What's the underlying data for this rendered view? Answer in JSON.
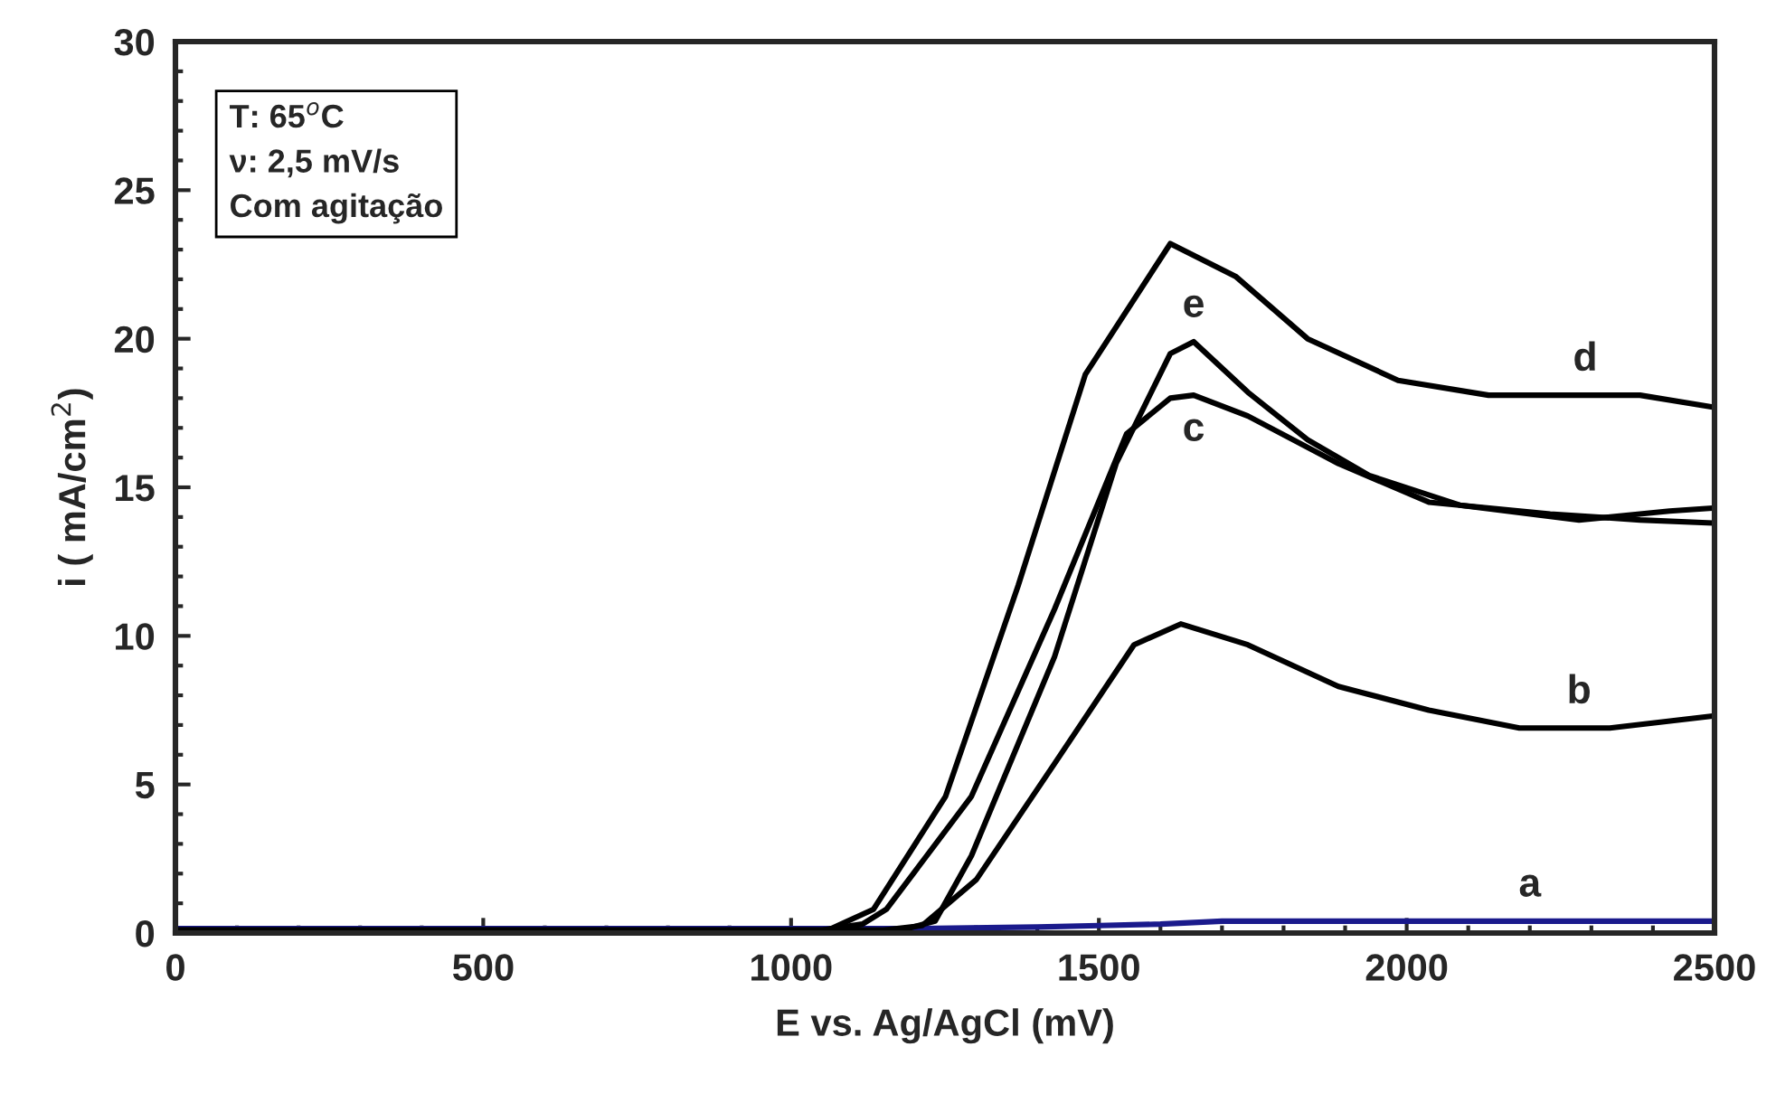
{
  "chart_data": {
    "type": "line",
    "xlabel": "E vs. Ag/AgCl (mV)",
    "ylabel": "i ( mA/cm$^{2}$)",
    "xlim": [
      0,
      2500
    ],
    "xticks": [
      0,
      500,
      1000,
      1500,
      2000,
      2500
    ],
    "ylim": [
      0,
      30
    ],
    "yticks": [
      0,
      5,
      10,
      15,
      20,
      25,
      30
    ],
    "grid": false,
    "legend": false,
    "marker": "none",
    "line_style": "solid",
    "series": [
      {
        "color": "#1a1a8c",
        "x": [
          0,
          600,
          1200,
          1400,
          1500,
          1600,
          1700,
          2000,
          2500
        ],
        "values": [
          0.15,
          0.15,
          0.15,
          0.2,
          0.25,
          0.3,
          0.4,
          0.4,
          0.4
        ]
      },
      {
        "color": "#000000",
        "x": [
          0,
          1150,
          1213,
          1301,
          1428,
          1557,
          1633,
          1742,
          1889,
          2036,
          2183,
          2330,
          2497
        ],
        "values": [
          0.1,
          0.1,
          0.25,
          1.8,
          5.7,
          9.7,
          10.4,
          9.7,
          8.3,
          7.5,
          6.9,
          6.9,
          7.3
        ]
      },
      {
        "color": "#000000",
        "x": [
          0,
          1050,
          1116,
          1155,
          1293,
          1428,
          1545,
          1616,
          1654,
          1742,
          1889,
          2036,
          2233,
          2379,
          2497
        ],
        "values": [
          0.1,
          0.1,
          0.3,
          0.8,
          4.6,
          10.9,
          16.8,
          18.0,
          18.1,
          17.4,
          15.8,
          14.5,
          14.1,
          13.9,
          13.8
        ]
      },
      {
        "color": "#000000",
        "x": [
          0,
          1060,
          1134,
          1251,
          1369,
          1478,
          1616,
          1722,
          1839,
          1986,
          2133,
          2379,
          2497
        ],
        "values": [
          0.1,
          0.1,
          0.8,
          4.6,
          11.7,
          18.8,
          23.2,
          22.1,
          20.0,
          18.6,
          18.1,
          18.1,
          17.7
        ]
      },
      {
        "color": "#000000",
        "x": [
          0,
          1180,
          1234,
          1293,
          1428,
          1528,
          1616,
          1654,
          1742,
          1839,
          1939,
          2086,
          2280,
          2427,
          2497
        ],
        "values": [
          0.1,
          0.1,
          0.4,
          2.6,
          9.3,
          15.8,
          19.5,
          19.9,
          18.2,
          16.6,
          15.4,
          14.4,
          13.9,
          14.2,
          14.3
        ]
      }
    ],
    "annotations": [
      {
        "text": "a",
        "x": 2200,
        "y": 0.4
      },
      {
        "text": "b",
        "x": 2280,
        "y": 6.9
      },
      {
        "text": "c",
        "x": 1654,
        "y": 18.1
      },
      {
        "text": "d",
        "x": 2290,
        "y": 18.1
      },
      {
        "text": "e",
        "x": 1654,
        "y": 19.9
      },
      "T: 65$^{o}$C",
      "ν: 2,5 mV/s",
      "Com agitação"
    ]
  }
}
